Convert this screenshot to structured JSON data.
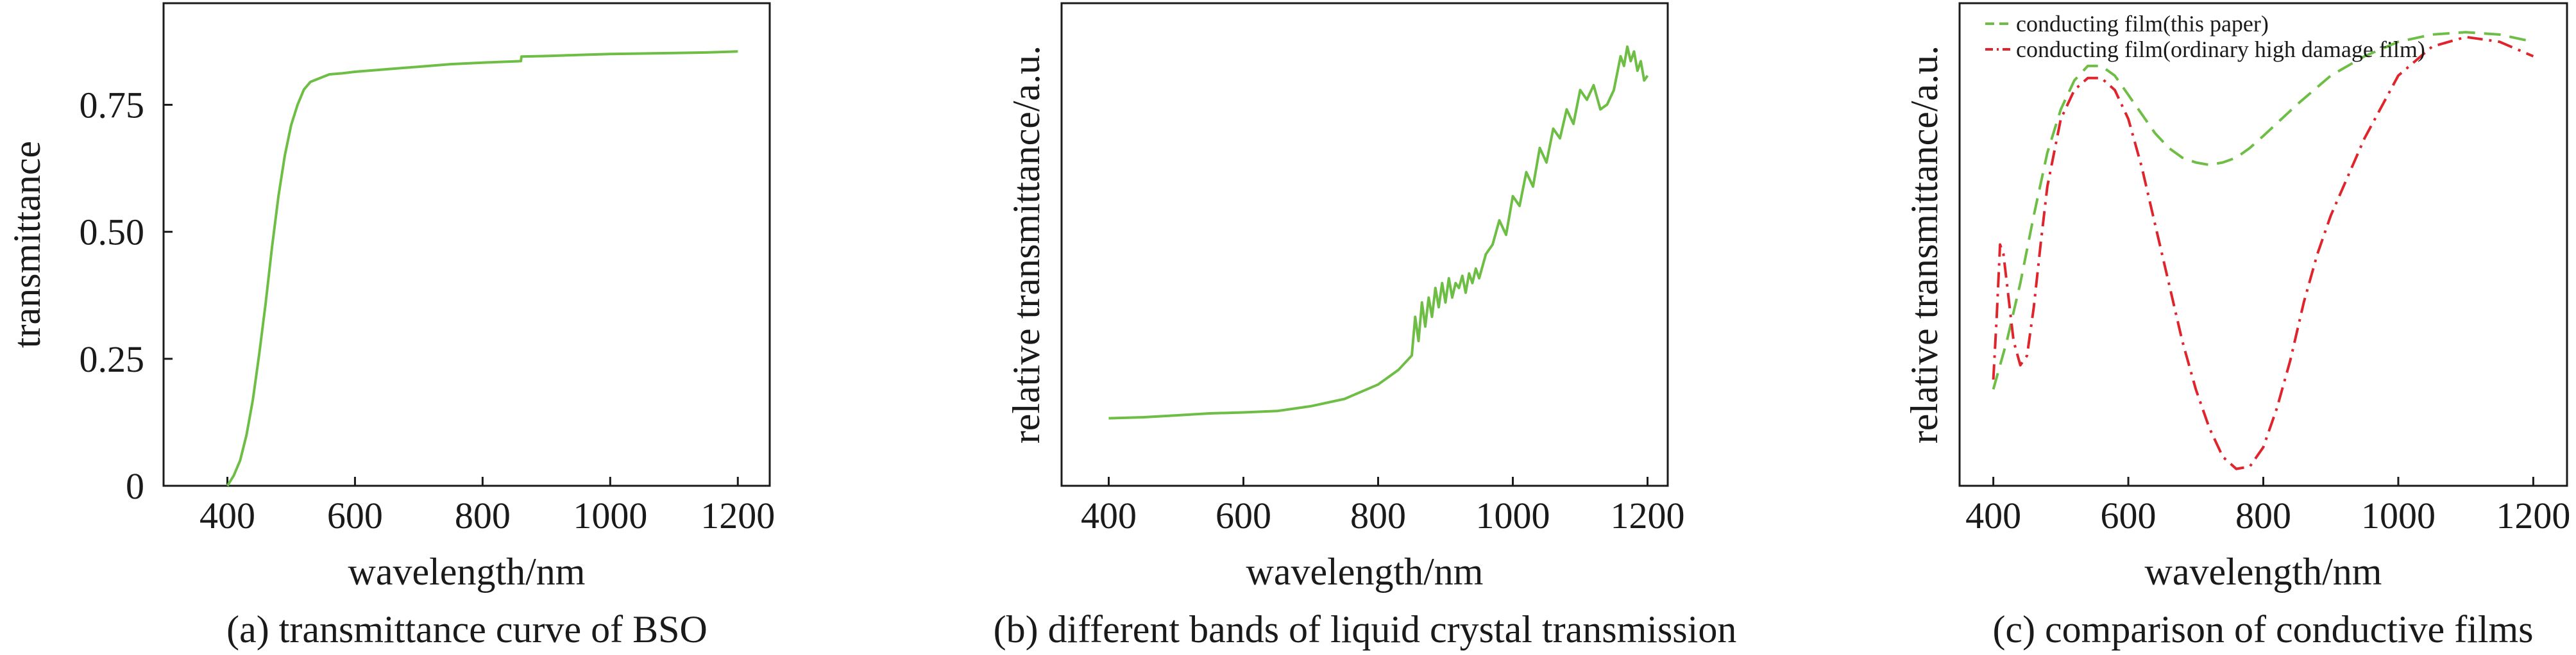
{
  "colors": {
    "green": "#6ebe46",
    "red": "#e0242c",
    "axis": "#1a1a1a"
  },
  "chart_data": [
    {
      "type": "line",
      "caption": "(a) transmittance curve of BSO",
      "xlabel": "wavelength/nm",
      "ylabel": "transmittance",
      "xlim": [
        300,
        1250
      ],
      "ylim": [
        0,
        0.95
      ],
      "xticks": [
        400,
        600,
        800,
        1000,
        1200
      ],
      "yticks": [
        0,
        0.25,
        0.5,
        0.75
      ],
      "ytick_labels": [
        "0",
        "0.25",
        "0.50",
        "0.75"
      ],
      "grid": false,
      "series": [
        {
          "color": "green",
          "style": "solid",
          "x": [
            400,
            410,
            420,
            430,
            440,
            450,
            460,
            470,
            480,
            490,
            500,
            510,
            520,
            530,
            540,
            550,
            560,
            580,
            600,
            650,
            700,
            750,
            800,
            860,
            861,
            900,
            950,
            1000,
            1050,
            1100,
            1150,
            1200
          ],
          "y": [
            0.0,
            0.02,
            0.05,
            0.1,
            0.17,
            0.26,
            0.36,
            0.47,
            0.57,
            0.65,
            0.71,
            0.75,
            0.78,
            0.795,
            0.8,
            0.805,
            0.81,
            0.812,
            0.815,
            0.82,
            0.825,
            0.83,
            0.833,
            0.836,
            0.845,
            0.846,
            0.848,
            0.85,
            0.851,
            0.852,
            0.853,
            0.855
          ]
        }
      ]
    },
    {
      "type": "line",
      "caption": "(b) different bands of liquid crystal transmission",
      "xlabel": "wavelength/nm",
      "ylabel": "relative transmittance/a.u.",
      "xlim": [
        330,
        1230
      ],
      "ylim": [
        0,
        1
      ],
      "xticks": [
        400,
        600,
        800,
        1000,
        1200
      ],
      "yticks": [],
      "grid": false,
      "series": [
        {
          "color": "green",
          "style": "solid",
          "x": [
            400,
            450,
            500,
            550,
            600,
            650,
            700,
            750,
            800,
            830,
            850,
            855,
            860,
            865,
            870,
            875,
            880,
            885,
            890,
            895,
            900,
            905,
            910,
            915,
            920,
            925,
            930,
            935,
            940,
            945,
            950,
            960,
            970,
            980,
            990,
            1000,
            1010,
            1020,
            1030,
            1040,
            1050,
            1060,
            1070,
            1080,
            1090,
            1100,
            1110,
            1120,
            1130,
            1140,
            1150,
            1160,
            1165,
            1170,
            1175,
            1180,
            1185,
            1190,
            1195,
            1200
          ],
          "y": [
            0.14,
            0.142,
            0.146,
            0.15,
            0.152,
            0.155,
            0.165,
            0.18,
            0.21,
            0.24,
            0.27,
            0.35,
            0.3,
            0.38,
            0.33,
            0.39,
            0.35,
            0.41,
            0.37,
            0.42,
            0.38,
            0.43,
            0.39,
            0.42,
            0.41,
            0.435,
            0.4,
            0.44,
            0.42,
            0.45,
            0.43,
            0.48,
            0.5,
            0.55,
            0.52,
            0.6,
            0.58,
            0.65,
            0.62,
            0.7,
            0.67,
            0.74,
            0.72,
            0.78,
            0.75,
            0.82,
            0.8,
            0.83,
            0.78,
            0.79,
            0.82,
            0.89,
            0.87,
            0.91,
            0.88,
            0.9,
            0.86,
            0.88,
            0.84,
            0.85
          ]
        }
      ]
    },
    {
      "type": "line",
      "caption": "(c) comparison of conductive films",
      "xlabel": "wavelength/nm",
      "ylabel": "relative transmittance/a.u.",
      "xlim": [
        350,
        1250
      ],
      "ylim": [
        0,
        1
      ],
      "xticks": [
        400,
        600,
        800,
        1000,
        1200
      ],
      "yticks": [],
      "legend": "top-left",
      "grid": false,
      "series": [
        {
          "name": "conducting film(this paper)",
          "color": "green",
          "style": "dashed",
          "x": [
            400,
            420,
            440,
            460,
            480,
            500,
            520,
            540,
            560,
            580,
            600,
            620,
            640,
            660,
            680,
            700,
            720,
            740,
            760,
            780,
            800,
            850,
            900,
            950,
            1000,
            1050,
            1100,
            1150,
            1200
          ],
          "y": [
            0.2,
            0.3,
            0.42,
            0.56,
            0.69,
            0.78,
            0.84,
            0.87,
            0.87,
            0.85,
            0.81,
            0.77,
            0.73,
            0.7,
            0.68,
            0.67,
            0.665,
            0.67,
            0.68,
            0.7,
            0.725,
            0.79,
            0.85,
            0.89,
            0.92,
            0.935,
            0.94,
            0.935,
            0.92
          ]
        },
        {
          "name": "conducting film(ordinary high damage film)",
          "color": "red",
          "style": "dashdot",
          "x": [
            400,
            405,
            410,
            415,
            420,
            430,
            440,
            450,
            460,
            470,
            480,
            500,
            520,
            540,
            560,
            580,
            600,
            620,
            640,
            660,
            680,
            700,
            720,
            740,
            760,
            780,
            800,
            820,
            840,
            860,
            880,
            900,
            950,
            1000,
            1050,
            1100,
            1150,
            1200
          ],
          "y": [
            0.22,
            0.35,
            0.5,
            0.48,
            0.42,
            0.3,
            0.25,
            0.27,
            0.37,
            0.5,
            0.62,
            0.76,
            0.82,
            0.845,
            0.845,
            0.82,
            0.76,
            0.66,
            0.54,
            0.42,
            0.3,
            0.2,
            0.12,
            0.06,
            0.035,
            0.04,
            0.08,
            0.16,
            0.26,
            0.38,
            0.48,
            0.56,
            0.72,
            0.85,
            0.91,
            0.93,
            0.92,
            0.89
          ]
        }
      ]
    }
  ]
}
